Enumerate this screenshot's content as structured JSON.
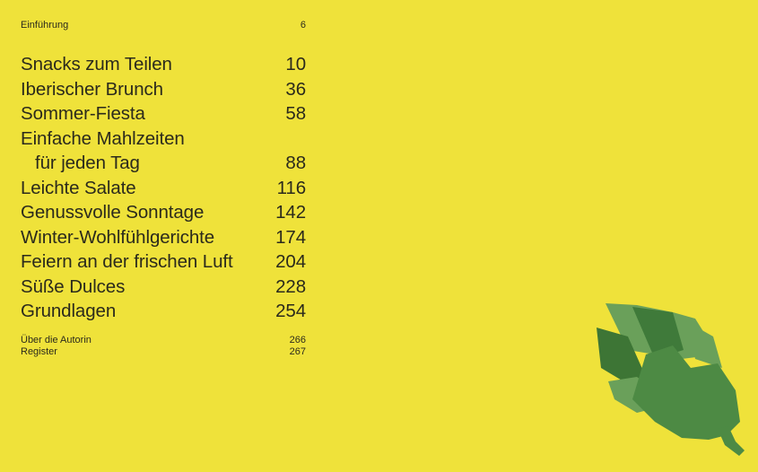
{
  "intro": {
    "title": "Einführung",
    "page": "6"
  },
  "chapters": [
    {
      "title": "Snacks zum Teilen",
      "page": "10"
    },
    {
      "title": "Iberischer Brunch",
      "page": "36"
    },
    {
      "title": "Sommer-Fiesta",
      "page": "58"
    },
    {
      "title": "Einfache Mahlzeiten",
      "page": ""
    },
    {
      "title": "für jeden Tag",
      "page": "88"
    },
    {
      "title": "Leichte Salate",
      "page": "116"
    },
    {
      "title": "Genussvolle Sonntage",
      "page": "142"
    },
    {
      "title": "Winter-Wohlfühlgerichte",
      "page": "174"
    },
    {
      "title": "Feiern an der frischen Luft",
      "page": "204"
    },
    {
      "title": "Süße Dulces",
      "page": "228"
    },
    {
      "title": "Grundlagen",
      "page": "254"
    }
  ],
  "appendix": [
    {
      "title": "Über die Autorin",
      "page": "266"
    },
    {
      "title": "Register",
      "page": "267"
    }
  ],
  "colors": {
    "background": "#efe23a",
    "text": "#2b2a1c",
    "artichoke_light": "#6aa05a",
    "artichoke_dark": "#3d7535"
  },
  "illustration": "artichoke-illustration"
}
